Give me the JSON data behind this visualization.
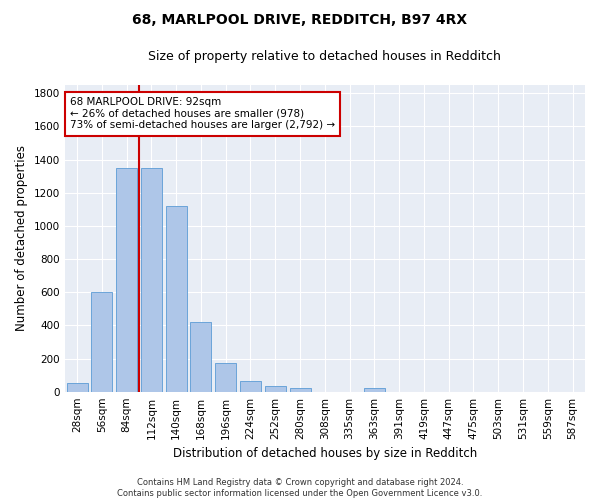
{
  "title_line1": "68, MARLPOOL DRIVE, REDDITCH, B97 4RX",
  "title_line2": "Size of property relative to detached houses in Redditch",
  "xlabel": "Distribution of detached houses by size in Redditch",
  "ylabel": "Number of detached properties",
  "bar_labels": [
    "28sqm",
    "56sqm",
    "84sqm",
    "112sqm",
    "140sqm",
    "168sqm",
    "196sqm",
    "224sqm",
    "252sqm",
    "280sqm",
    "308sqm",
    "335sqm",
    "363sqm",
    "391sqm",
    "419sqm",
    "447sqm",
    "475sqm",
    "503sqm",
    "531sqm",
    "559sqm",
    "587sqm"
  ],
  "bar_values": [
    55,
    600,
    1350,
    1350,
    1120,
    420,
    175,
    65,
    35,
    25,
    0,
    0,
    20,
    0,
    0,
    0,
    0,
    0,
    0,
    0,
    0
  ],
  "bar_color": "#aec6e8",
  "bar_edge_color": "#5b9bd5",
  "vline_x_index": 2,
  "vline_color": "#cc0000",
  "annotation_text": "68 MARLPOOL DRIVE: 92sqm\n← 26% of detached houses are smaller (978)\n73% of semi-detached houses are larger (2,792) →",
  "annotation_box_edgecolor": "#cc0000",
  "ylim": [
    0,
    1850
  ],
  "yticks": [
    0,
    200,
    400,
    600,
    800,
    1000,
    1200,
    1400,
    1600,
    1800
  ],
  "bg_color": "#e8edf5",
  "grid_color": "#ffffff",
  "footnote": "Contains HM Land Registry data © Crown copyright and database right 2024.\nContains public sector information licensed under the Open Government Licence v3.0.",
  "title_fontsize": 10,
  "subtitle_fontsize": 9,
  "axis_label_fontsize": 8.5,
  "tick_fontsize": 7.5,
  "annotation_fontsize": 7.5,
  "footnote_fontsize": 6
}
